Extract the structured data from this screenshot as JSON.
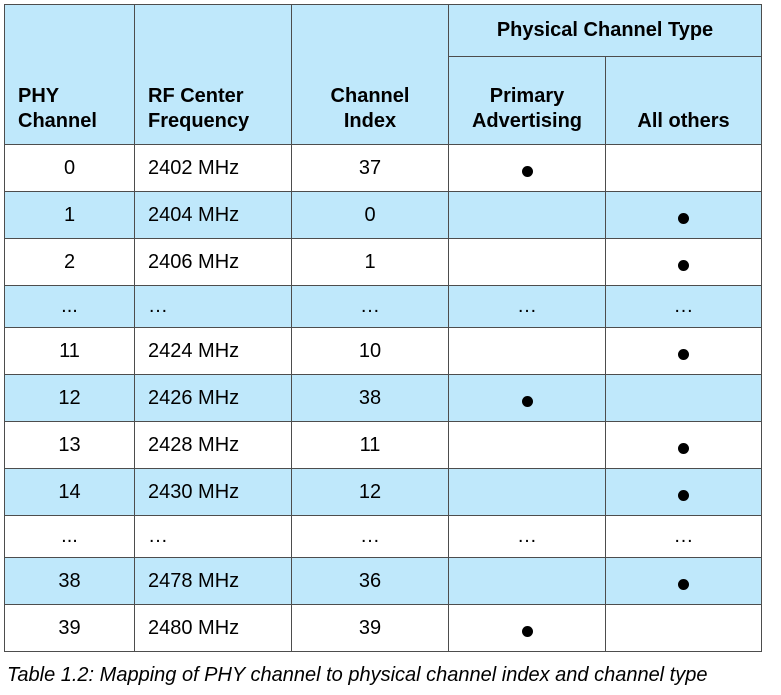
{
  "table": {
    "headers": {
      "phy_channel": "PHY Channel",
      "rf_center_frequency": "RF Center Frequency",
      "channel_index": "Channel Index",
      "physical_channel_type": "Physical Channel Type",
      "primary_advertising": "Primary Advertising",
      "all_others": "All others"
    },
    "rows": [
      {
        "phy": "0",
        "freq": "2402 MHz",
        "index": "37",
        "primary": "●",
        "others": ""
      },
      {
        "phy": "1",
        "freq": "2404 MHz",
        "index": "0",
        "primary": "",
        "others": "●"
      },
      {
        "phy": "2",
        "freq": "2406 MHz",
        "index": "1",
        "primary": "",
        "others": "●"
      },
      {
        "phy": "...",
        "freq": "…",
        "index": "…",
        "primary": "…",
        "others": "…"
      },
      {
        "phy": "11",
        "freq": "2424 MHz",
        "index": "10",
        "primary": "",
        "others": "●"
      },
      {
        "phy": "12",
        "freq": "2426 MHz",
        "index": "38",
        "primary": "●",
        "others": ""
      },
      {
        "phy": "13",
        "freq": "2428 MHz",
        "index": "11",
        "primary": "",
        "others": "●"
      },
      {
        "phy": "14",
        "freq": "2430 MHz",
        "index": "12",
        "primary": "",
        "others": "●"
      },
      {
        "phy": "...",
        "freq": "…",
        "index": "…",
        "primary": "…",
        "others": "…"
      },
      {
        "phy": "38",
        "freq": "2478 MHz",
        "index": "36",
        "primary": "",
        "others": "●"
      },
      {
        "phy": "39",
        "freq": "2480 MHz",
        "index": "39",
        "primary": "●",
        "others": ""
      }
    ]
  },
  "caption": "Table 1.2:  Mapping of PHY channel to physical channel index and channel type",
  "colors": {
    "header_bg": "#bfe8fb",
    "alt_row_bg": "#bfe8fb",
    "border": "#4d4d4d"
  }
}
